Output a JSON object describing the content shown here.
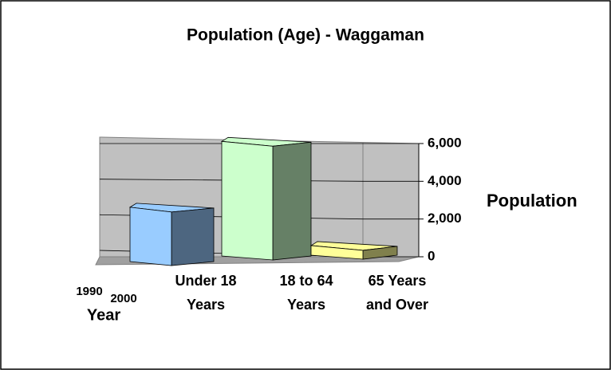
{
  "chart_data": {
    "type": "bar3d",
    "title": "Population (Age) - Waggaman",
    "categories": [
      [
        "Under 18",
        "Years"
      ],
      [
        "18 to 64",
        "Years"
      ],
      [
        "65 Years",
        "and Over"
      ]
    ],
    "values": [
      3000,
      6100,
      700
    ],
    "colors": [
      "#99ccff",
      "#ccffcc",
      "#ffff99"
    ],
    "depth_labels": [
      "1990",
      "2000"
    ],
    "depth_axis_label": "Year",
    "ylabel": "Population",
    "ylim": [
      0,
      6000
    ],
    "yticks": [
      0,
      {
        "value": 2000,
        "label": "2,000"
      },
      {
        "value": 4000,
        "label": "4,000"
      },
      {
        "value": 6000,
        "label": "6,000"
      }
    ],
    "grid": true
  }
}
